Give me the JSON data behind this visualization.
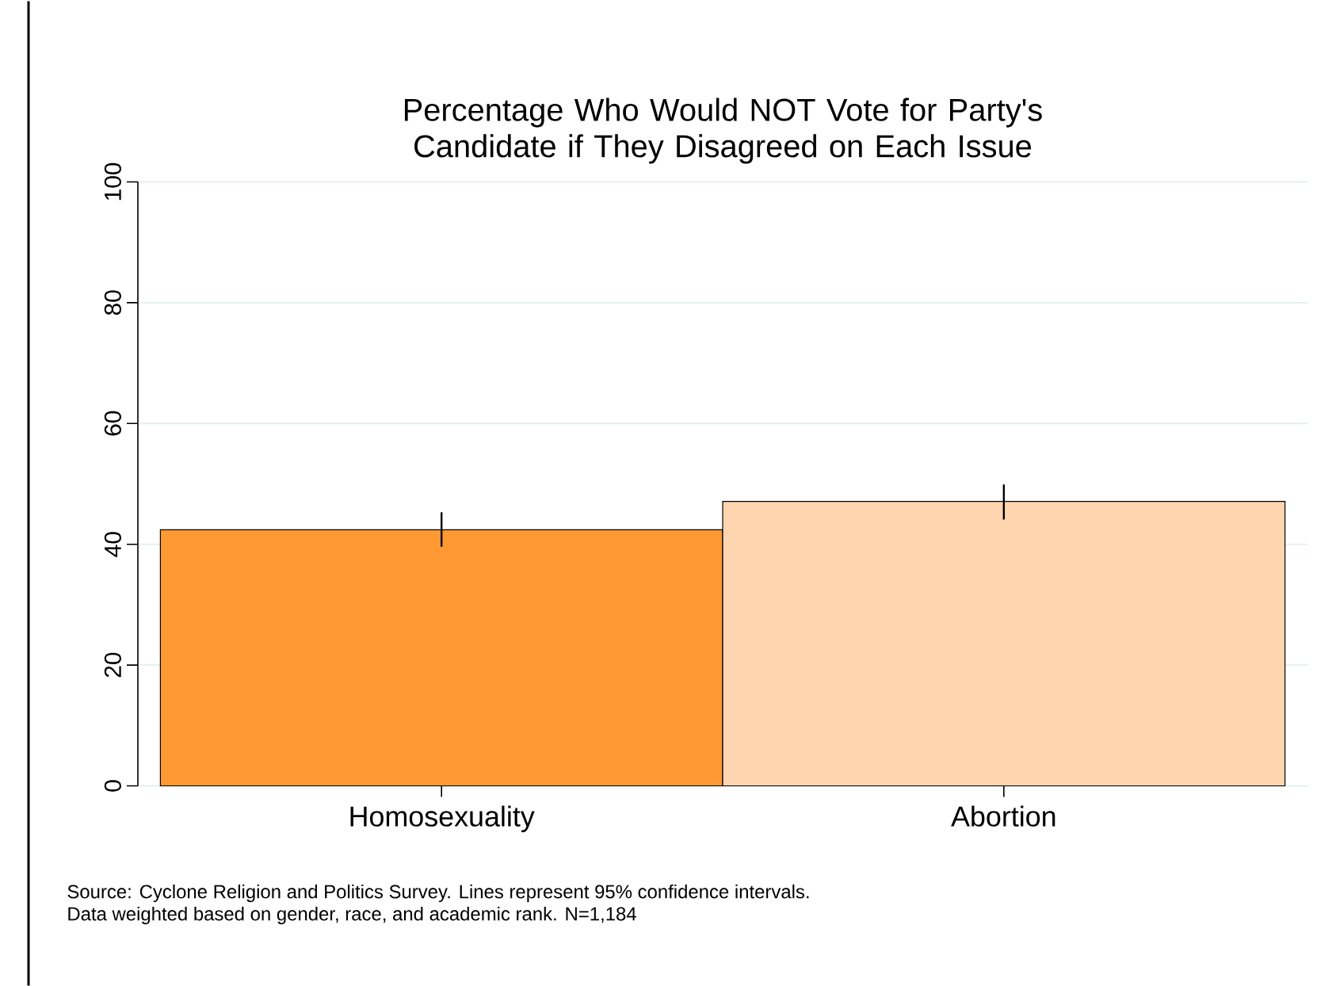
{
  "chart_data": {
    "type": "bar",
    "title": "Percentage Who Would NOT Vote for Party's Candidate if They Disagreed on Each Issue",
    "categories": [
      "Homosexuality",
      "Abortion"
    ],
    "values": [
      42.4,
      47.1
    ],
    "colors": [
      "#ff9933",
      "#fed5ae"
    ],
    "errors": [
      [
        39.6,
        45.3
      ],
      [
        44.1,
        49.9
      ]
    ],
    "ylim": [
      0,
      100
    ],
    "yticks": [
      0,
      20,
      40,
      60,
      80,
      100
    ],
    "grid": "y",
    "annotations": [
      "Source: Cyclone Religion and Politics Survey. Lines represent 95% confidence intervals.",
      "Data weighted based on gender, race, and academic rank. N=1,184"
    ]
  }
}
